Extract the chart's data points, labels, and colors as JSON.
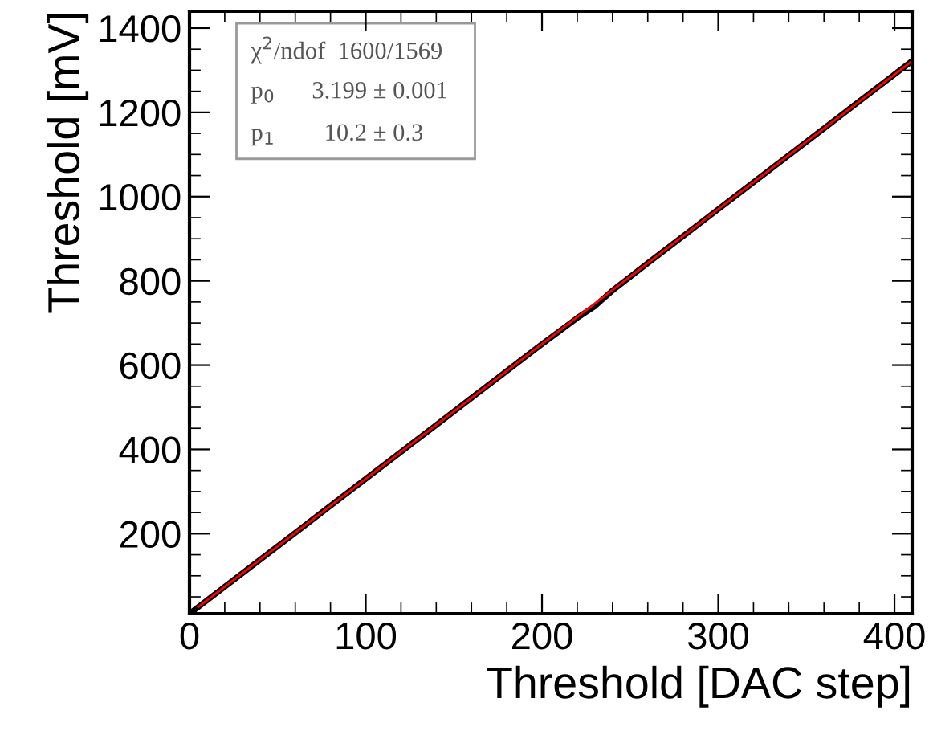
{
  "chart_data": {
    "type": "line",
    "xlabel": "Threshold [DAC step]",
    "ylabel": "Threshold [mV]",
    "xlim": [
      0,
      410
    ],
    "ylim": [
      10,
      1440
    ],
    "xticks": [
      0,
      100,
      200,
      300,
      400
    ],
    "yticks": [
      200,
      400,
      600,
      800,
      1000,
      1200,
      1400
    ],
    "grid": false,
    "legend": false,
    "marker": "none",
    "line_style": "solid",
    "series": [
      {
        "color": "#000000",
        "x": [
          0,
          20,
          40,
          60,
          80,
          100,
          120,
          140,
          160,
          180,
          200,
          220,
          230,
          240,
          260,
          280,
          300,
          320,
          340,
          360,
          380,
          400,
          410
        ],
        "values": [
          10,
          74,
          138,
          202,
          266,
          330,
          394,
          458,
          522,
          586,
          650,
          712,
          740,
          777,
          842,
          906,
          970,
          1034,
          1098,
          1162,
          1226,
          1290,
          1322
        ]
      },
      {
        "color": "#ff0000",
        "type": "line",
        "x": [
          5,
          410
        ],
        "values": [
          26,
          1322
        ]
      }
    ],
    "annotations": [
      "χ$^{2}$/ndof  1600/1569",
      "p$_{0}$      3.199 ± 0.001",
      "p$_{1}$        10.2 ± 0.3"
    ]
  }
}
